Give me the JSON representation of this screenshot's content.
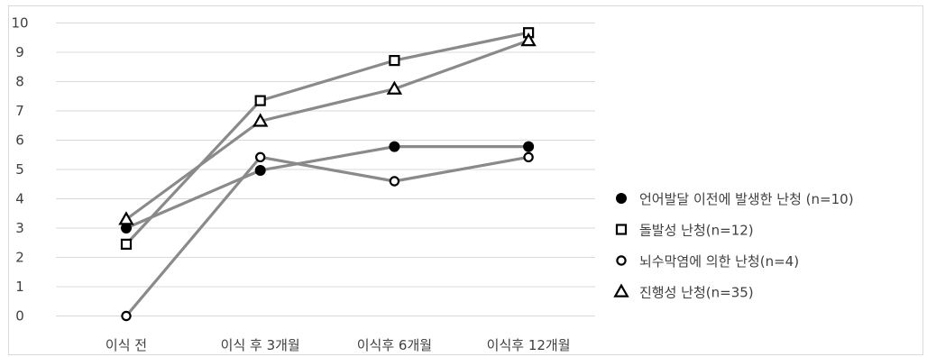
{
  "chart_data": {
    "type": "line",
    "categories": [
      "이식 전",
      "이식 후 3개월",
      "이식후 6개월",
      "이식후 12개월"
    ],
    "ylim": [
      0,
      10
    ],
    "yticks": [
      0,
      1,
      2,
      3,
      4,
      5,
      6,
      7,
      8,
      9,
      10
    ],
    "grid": true,
    "legend_position": "right",
    "line_color": "#8a8a8a",
    "series": [
      {
        "name": "언어발달 이전에 발생한 난청 (n=10)",
        "marker": "filled-circle",
        "values": [
          3.0,
          4.97,
          5.78,
          5.78
        ]
      },
      {
        "name": "돌발성 난청(n=12)",
        "marker": "square",
        "values": [
          2.45,
          7.35,
          8.72,
          9.67
        ]
      },
      {
        "name": "뇌수막염에 의한 난청(n=4)",
        "marker": "open-circle",
        "values": [
          0.0,
          5.42,
          4.6,
          5.42
        ]
      },
      {
        "name": "진행성 난청(n=35)",
        "marker": "triangle",
        "values": [
          3.3,
          6.65,
          7.75,
          9.4
        ]
      }
    ]
  }
}
